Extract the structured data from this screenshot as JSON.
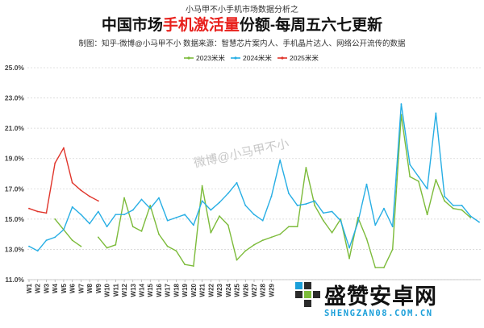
{
  "header": {
    "supertitle": "小马甲不小手机市场数据分析之",
    "title_pre": "中国市场",
    "title_highlight": "手机激活量",
    "title_post": "份额-每周五六七更新",
    "subtitle": "制图：知乎-微博@小马甲不小  数据来源：智慧芯片案内人、手机晶片达人、网络公开流传的数据",
    "watermark": "微博@小马甲不小"
  },
  "branding": {
    "name": "盛赞安卓网",
    "domain": "SHENGZAN08.COM.CN"
  },
  "chart_data": {
    "type": "line",
    "title": "中国市场手机激活量份额-每周五六七更新",
    "xlabel": "",
    "ylabel": "",
    "x_tick_labels": [
      "W1",
      "W2",
      "W3",
      "W4",
      "W5",
      "W6",
      "W7",
      "W8",
      "W9",
      "W10",
      "W11",
      "W12",
      "W13",
      "W14",
      "W15",
      "W16",
      "W17",
      "W18",
      "W19",
      "W20",
      "W21",
      "W22",
      "W23",
      "W24",
      "W25",
      "W26",
      "W27",
      "W28",
      "W29"
    ],
    "x_count": 53,
    "y_tick_labels": [
      "11.0%",
      "13.0%",
      "15.0%",
      "17.0%",
      "19.0%",
      "21.0%",
      "23.0%",
      "25.0%"
    ],
    "ylim": [
      11.0,
      25.0
    ],
    "grid": "horizontal-dashed",
    "legend_position": "top-center",
    "series": [
      {
        "name": "2023米米",
        "color": "#7cbb3a",
        "values": [
          null,
          null,
          null,
          15.0,
          14.3,
          13.6,
          13.2,
          null,
          13.8,
          13.1,
          13.3,
          16.4,
          14.5,
          14.2,
          15.9,
          14.0,
          13.2,
          12.9,
          12.0,
          11.9,
          17.2,
          14.1,
          15.2,
          14.6,
          12.3,
          12.9,
          13.3,
          13.6,
          13.8,
          14.0,
          14.5,
          14.5,
          18.4,
          15.9,
          14.9,
          14.1,
          15.0,
          12.4,
          15.1,
          13.7,
          11.8,
          11.8,
          13.0,
          21.9,
          17.8,
          17.5,
          15.3,
          17.6,
          16.2,
          15.7,
          15.6,
          15.1,
          null
        ]
      },
      {
        "name": "2024米米",
        "color": "#27aee4",
        "values": [
          13.2,
          12.9,
          13.6,
          13.8,
          14.3,
          15.8,
          15.3,
          14.7,
          15.5,
          14.5,
          15.3,
          15.3,
          15.6,
          16.3,
          15.7,
          16.4,
          14.9,
          15.1,
          15.3,
          14.6,
          16.2,
          15.6,
          16.1,
          16.7,
          17.4,
          15.9,
          15.3,
          14.9,
          16.5,
          18.9,
          16.7,
          15.9,
          16.0,
          16.2,
          15.4,
          15.5,
          14.9,
          13.1,
          14.8,
          17.3,
          14.6,
          15.7,
          14.5,
          22.6,
          18.6,
          17.8,
          17.0,
          22.0,
          16.5,
          15.9,
          15.9,
          15.2,
          14.8
        ]
      },
      {
        "name": "2025米米",
        "color": "#e0352b",
        "values": [
          15.7,
          15.5,
          15.4,
          18.7,
          19.7,
          17.4,
          16.9,
          16.5,
          16.2
        ]
      }
    ]
  }
}
